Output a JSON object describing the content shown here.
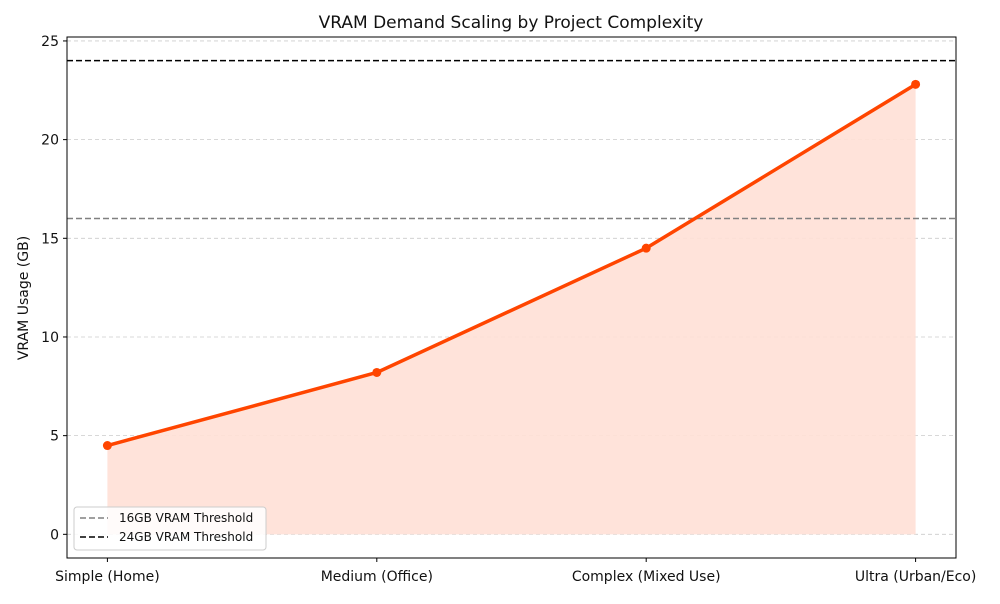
{
  "chart_data": {
    "type": "line",
    "title": "VRAM Demand Scaling by Project Complexity",
    "xlabel": "",
    "ylabel": "VRAM Usage (GB)",
    "categories": [
      "Simple (Home)",
      "Medium (Office)",
      "Complex (Mixed Use)",
      "Ultra (Urban/Eco)"
    ],
    "values": [
      4.5,
      8.2,
      14.5,
      22.8
    ],
    "fill_under": true,
    "ylim": [
      -1.2,
      25.2
    ],
    "yticks": [
      0,
      5,
      10,
      15,
      20,
      25
    ],
    "grid": "y-dashed",
    "line_color": "#ff4500",
    "fill_color": "#ffe0d6",
    "thresholds": [
      {
        "label": "16GB VRAM Threshold",
        "value": 16,
        "color": "#808080"
      },
      {
        "label": "24GB VRAM Threshold",
        "value": 24,
        "color": "#000000"
      }
    ],
    "legend_position": "lower-left"
  }
}
